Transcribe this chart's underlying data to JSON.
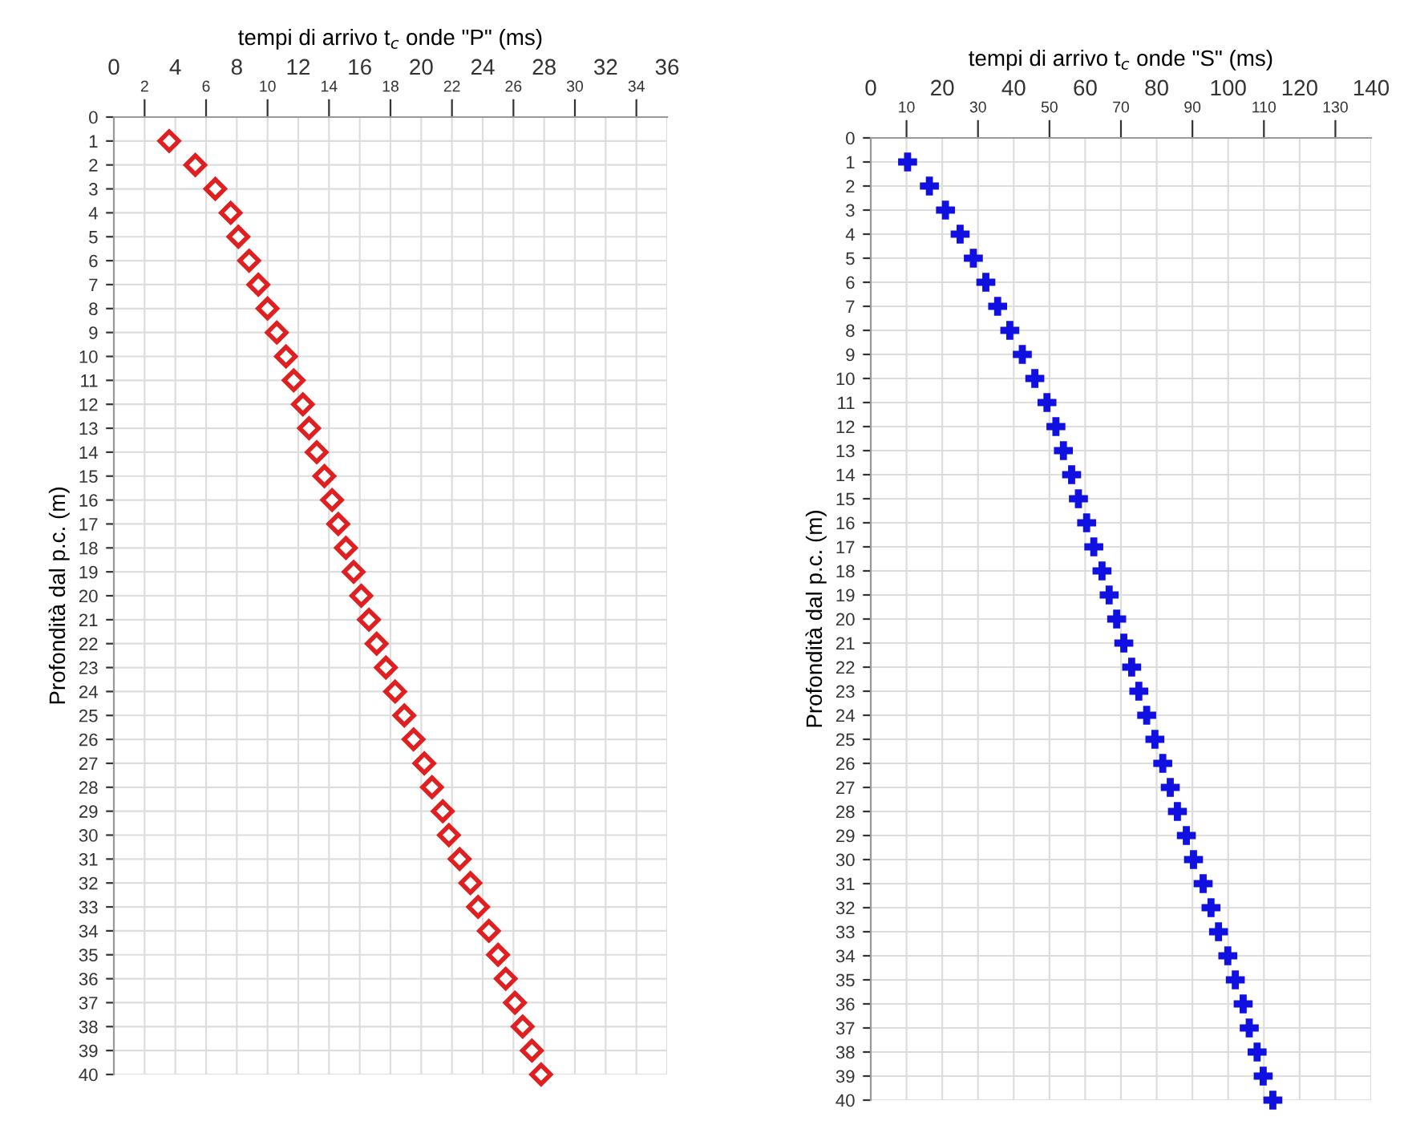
{
  "chart_data": [
    {
      "type": "scatter",
      "xlabel": "tempi di arrivo t$_{c}$ onde \"P\" (ms)",
      "ylabel": "Profondità dal p.c. (m)",
      "marker": "diamond",
      "grid": true,
      "xlim": [
        0,
        36
      ],
      "xticks": [
        0,
        4,
        8,
        12,
        16,
        20,
        24,
        28,
        32,
        36
      ],
      "x2lim": [
        0,
        36
      ],
      "x2ticks": [
        2,
        6,
        10,
        14,
        18,
        22,
        26,
        30,
        34
      ],
      "ylim": [
        40,
        0
      ],
      "yticks": [
        0,
        1,
        2,
        3,
        4,
        5,
        6,
        7,
        8,
        9,
        10,
        11,
        12,
        13,
        14,
        15,
        16,
        17,
        18,
        19,
        20,
        21,
        22,
        23,
        24,
        25,
        26,
        27,
        28,
        29,
        30,
        31,
        32,
        33,
        34,
        35,
        36,
        37,
        38,
        39,
        40
      ],
      "series": [
        {
          "color": "#e02020",
          "x": [
            3.6,
            5.3,
            6.6,
            7.6,
            8.1,
            8.8,
            9.4,
            10.0,
            10.6,
            11.2,
            11.7,
            12.3,
            12.7,
            13.2,
            13.7,
            14.2,
            14.6,
            15.1,
            15.6,
            16.1,
            16.6,
            17.1,
            17.7,
            18.3,
            18.9,
            19.5,
            20.2,
            20.7,
            21.4,
            21.8,
            22.5,
            23.2,
            23.7,
            24.4,
            25.0,
            25.5,
            26.1,
            26.6,
            27.2,
            27.8
          ],
          "values": [
            1,
            2,
            3,
            4,
            5,
            6,
            7,
            8,
            9,
            10,
            11,
            12,
            13,
            14,
            15,
            16,
            17,
            18,
            19,
            20,
            21,
            22,
            23,
            24,
            25,
            26,
            27,
            28,
            29,
            30,
            31,
            32,
            33,
            34,
            35,
            36,
            37,
            38,
            39,
            40
          ]
        }
      ]
    },
    {
      "type": "scatter",
      "xlabel": "tempi di arrivo t$_{c}$ onde \"S\" (ms)",
      "ylabel": "Profondità dal p.c. (m)",
      "marker": "cross",
      "grid": true,
      "xlim": [
        0,
        140
      ],
      "xticks": [
        0,
        20,
        40,
        60,
        80,
        100,
        120,
        140
      ],
      "x2lim": [
        0,
        140
      ],
      "x2ticks": [
        10,
        30,
        50,
        70,
        90,
        110,
        130
      ],
      "ylim": [
        40,
        0
      ],
      "yticks": [
        0,
        1,
        2,
        3,
        4,
        5,
        6,
        7,
        8,
        9,
        10,
        11,
        12,
        13,
        14,
        15,
        16,
        17,
        18,
        19,
        20,
        21,
        22,
        23,
        24,
        25,
        26,
        27,
        28,
        29,
        30,
        31,
        32,
        33,
        34,
        35,
        36,
        37,
        38,
        39,
        40
      ],
      "series": [
        {
          "color": "#1010e0",
          "x": [
            10.3,
            16.4,
            20.9,
            25.0,
            28.7,
            32.2,
            35.5,
            38.9,
            42.4,
            45.9,
            49.3,
            51.8,
            53.9,
            56.2,
            58.1,
            60.4,
            62.4,
            64.7,
            66.7,
            68.8,
            70.8,
            73.0,
            75.0,
            77.2,
            79.5,
            81.7,
            83.8,
            85.8,
            88.3,
            90.3,
            93.0,
            95.2,
            97.3,
            99.9,
            102.0,
            104.2,
            105.9,
            108.1,
            109.8,
            112.5
          ],
          "values": [
            1,
            2,
            3,
            4,
            5,
            6,
            7,
            8,
            9,
            10,
            11,
            12,
            13,
            14,
            15,
            16,
            17,
            18,
            19,
            20,
            21,
            22,
            23,
            24,
            25,
            26,
            27,
            28,
            29,
            30,
            31,
            32,
            33,
            34,
            35,
            36,
            37,
            38,
            39,
            40
          ]
        }
      ]
    }
  ]
}
